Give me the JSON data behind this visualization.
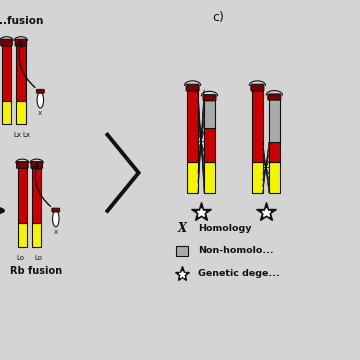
{
  "bg_color": "#d4d4d4",
  "colors": {
    "red": "#cc0000",
    "yellow": "#f5f500",
    "dark_red": "#7a0000",
    "gray": "#aaaaaa",
    "black": "#111111",
    "white": "#ffffff"
  },
  "layout": {
    "xlim": [
      0,
      10
    ],
    "ylim": [
      0,
      10
    ],
    "figsize": [
      3.6,
      3.6
    ],
    "dpi": 100
  }
}
